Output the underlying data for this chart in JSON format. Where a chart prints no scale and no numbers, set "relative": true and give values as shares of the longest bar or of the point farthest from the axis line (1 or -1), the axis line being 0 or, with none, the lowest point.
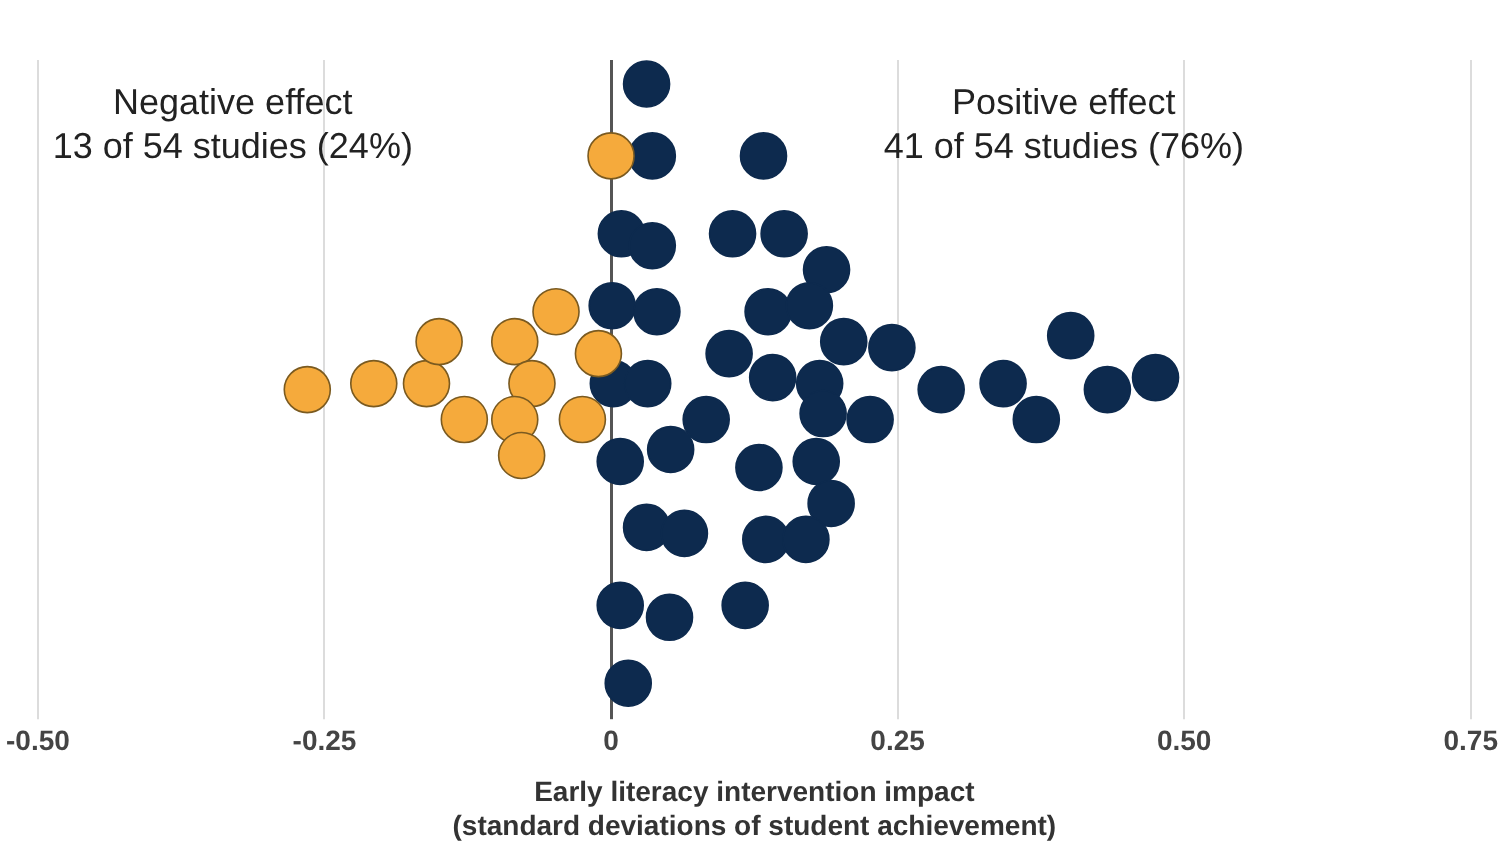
{
  "chart_data": {
    "type": "scatter",
    "xlabel": "Early literacy intervention impact\n(standard deviations of student achievement)",
    "annotations": [
      "Negative effect\n13 of 54 studies (24%)",
      "Positive effect\n41 of 54 studies (76%)"
    ],
    "relative": true,
    "marker": "circle",
    "grid": "x",
    "legend": false,
    "xlim": [
      -0.5,
      0.75
    ],
    "xticks": [
      {
        "value": -0.5,
        "label": "-0.50"
      },
      -0.25,
      0,
      0.25,
      {
        "value": 0.5,
        "label": "0.50"
      },
      0.75
    ],
    "series": [
      {
        "color": "#f5aa3c",
        "x": [
          0.0,
          -0.265,
          -0.207,
          -0.161,
          -0.15,
          -0.128,
          -0.084,
          -0.069,
          -0.084,
          -0.078,
          -0.048,
          -0.011,
          -0.025
        ],
        "values": [
          0.88,
          0.49,
          0.5,
          0.5,
          0.57,
          0.44,
          0.57,
          0.5,
          0.44,
          0.38,
          0.62,
          0.55,
          0.44
        ]
      },
      {
        "color": "#0d2a4e",
        "x": [
          0.031,
          0.036,
          0.133,
          0.009,
          0.036,
          0.106,
          0.151,
          0.188,
          0.001,
          0.04,
          0.137,
          0.173,
          0.203,
          0.103,
          0.245,
          0.401,
          0.002,
          0.032,
          0.141,
          0.182,
          0.288,
          0.342,
          0.371,
          0.433,
          0.475,
          0.083,
          0.185,
          0.226,
          0.008,
          0.052,
          0.129,
          0.179,
          0.192,
          0.031,
          0.064,
          0.135,
          0.17,
          0.008,
          0.051,
          0.117,
          0.015
        ],
        "values": [
          1.0,
          0.88,
          0.88,
          0.75,
          0.73,
          0.75,
          0.75,
          0.69,
          0.63,
          0.62,
          0.62,
          0.63,
          0.57,
          0.55,
          0.56,
          0.58,
          0.5,
          0.5,
          0.51,
          0.5,
          0.49,
          0.5,
          0.44,
          0.49,
          0.51,
          0.44,
          0.45,
          0.44,
          0.37,
          0.39,
          0.36,
          0.37,
          0.3,
          0.26,
          0.25,
          0.24,
          0.24,
          0.13,
          0.11,
          0.13,
          0.0
        ]
      }
    ]
  }
}
